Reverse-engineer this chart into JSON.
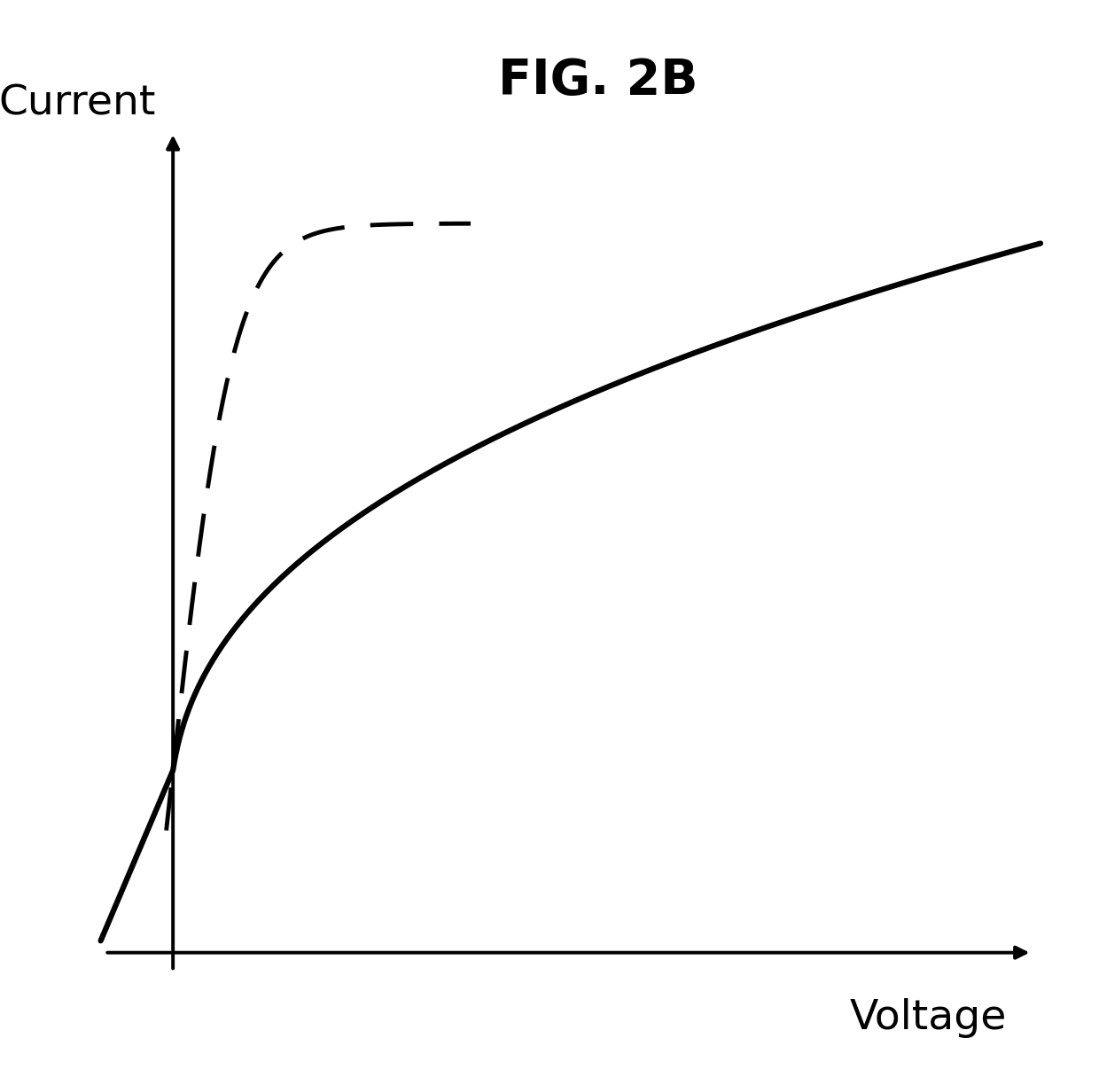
{
  "title": "FIG. 2B",
  "xlabel": "Voltage",
  "ylabel": "Current",
  "background_color": "#ffffff",
  "title_fontsize": 40,
  "label_fontsize": 34,
  "line_color": "#000000",
  "solid_linewidth": 4.5,
  "dashed_linewidth": 3.5,
  "fig_width": 12.4,
  "fig_height": 12.24,
  "xlim": [
    -1.0,
    10.5
  ],
  "ylim": [
    -2.5,
    7.5
  ]
}
